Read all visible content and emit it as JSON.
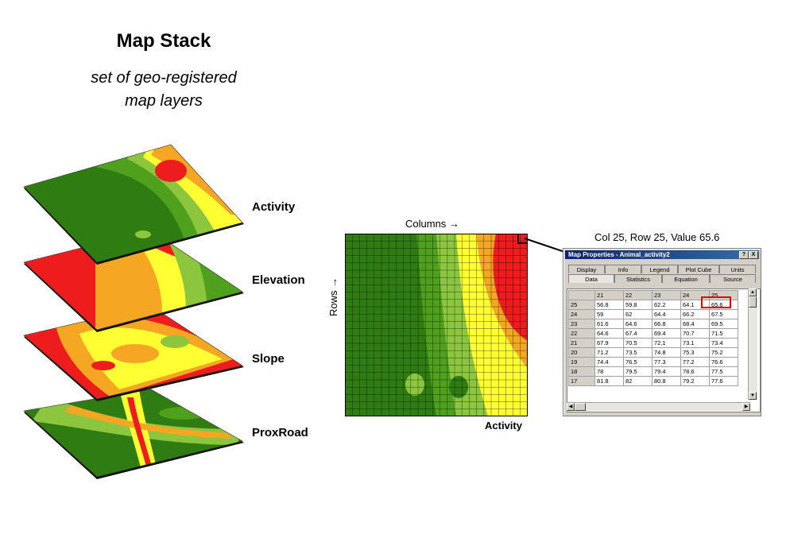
{
  "title": "Map Stack",
  "subtitle_line1": "set of geo-registered",
  "subtitle_line2": "map layers",
  "layers": [
    {
      "label": "Activity"
    },
    {
      "label": "Elevation"
    },
    {
      "label": "Slope"
    },
    {
      "label": "ProxRoad"
    }
  ],
  "grid_map": {
    "columns_label": "Columns →",
    "rows_label": "Rows →",
    "name": "Activity"
  },
  "cell_readout": "Col 25, Row 25, Value 65.6",
  "window": {
    "title": "Map Properties - Animal_activity2",
    "help_button": "?",
    "close_button": "X",
    "tabs_row1": [
      "Display",
      "Info",
      "Legend",
      "Plot Cube",
      "Units"
    ],
    "tabs_row2": [
      "Data",
      "Statistics",
      "Equation",
      "Source"
    ],
    "active_tab": "Data",
    "columns": [
      "",
      "21",
      "22",
      "23",
      "24",
      "25"
    ],
    "rows": [
      [
        "25",
        "56.8",
        "59.8",
        "62.2",
        "64.1",
        "65.6"
      ],
      [
        "24",
        "59",
        "62",
        "64.4",
        "66.2",
        "67.5"
      ],
      [
        "23",
        "61.6",
        "64.6",
        "66.8",
        "68.4",
        "69.5"
      ],
      [
        "22",
        "64.6",
        "67.4",
        "69.4",
        "70.7",
        "71.5"
      ],
      [
        "21",
        "67.9",
        "70.5",
        "72.1",
        "73.1",
        "73.4"
      ],
      [
        "20",
        "71.2",
        "73.5",
        "74.8",
        "75.3",
        "75.2"
      ],
      [
        "19",
        "74.4",
        "76.5",
        "77.3",
        "77.2",
        "76.6"
      ],
      [
        "18",
        "78",
        "79.5",
        "79.4",
        "78.6",
        "77.5"
      ],
      [
        "17",
        "81.8",
        "82",
        "80.8",
        "79.2",
        "77.6"
      ]
    ]
  },
  "colors": {
    "dark_green": "#2f7d12",
    "green": "#4fa01c",
    "light_green": "#8cc63f",
    "yellow": "#ffff33",
    "orange": "#f5a623",
    "red": "#ee1c1c",
    "highlight": "#e00000"
  }
}
